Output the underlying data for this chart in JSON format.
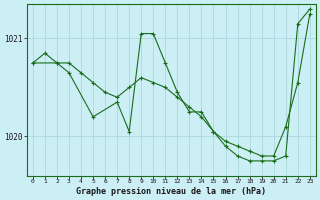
{
  "title": "Graphe pression niveau de la mer (hPa)",
  "background_color": "#cceef5",
  "grid_color": "#b0d8e0",
  "line_color": "#1a6e1a",
  "xlim": [
    -0.5,
    23.5
  ],
  "ylim": [
    1019.6,
    1021.35
  ],
  "yticks": [
    1020,
    1021
  ],
  "xticks": [
    0,
    1,
    2,
    3,
    4,
    5,
    6,
    7,
    8,
    9,
    10,
    11,
    12,
    13,
    14,
    15,
    16,
    17,
    18,
    19,
    20,
    21,
    22,
    23
  ],
  "series1_x": [
    0,
    1,
    2,
    3,
    4,
    5,
    6,
    7,
    8,
    9,
    10,
    11,
    12,
    13,
    14,
    15,
    16,
    17,
    18,
    19,
    20,
    21,
    22,
    23
  ],
  "series1_y": [
    1020.75,
    1020.85,
    1020.75,
    1020.75,
    1020.65,
    1020.55,
    1020.45,
    1020.4,
    1020.5,
    1020.6,
    1020.55,
    1020.5,
    1020.4,
    1020.3,
    1020.2,
    1020.05,
    1019.95,
    1019.9,
    1019.85,
    1019.8,
    1019.8,
    1020.1,
    1020.55,
    1021.25
  ],
  "series2_x": [
    0,
    2,
    3,
    5,
    7,
    8,
    9,
    10,
    11,
    12,
    13,
    14,
    15,
    16,
    17,
    18,
    19,
    20,
    21,
    22,
    23
  ],
  "series2_y": [
    1020.75,
    1020.75,
    1020.65,
    1020.2,
    1020.35,
    1020.05,
    1021.05,
    1021.05,
    1020.75,
    1020.45,
    1020.25,
    1020.25,
    1020.05,
    1019.9,
    1019.8,
    1019.75,
    1019.75,
    1019.75,
    1019.8,
    1021.15,
    1021.3
  ]
}
